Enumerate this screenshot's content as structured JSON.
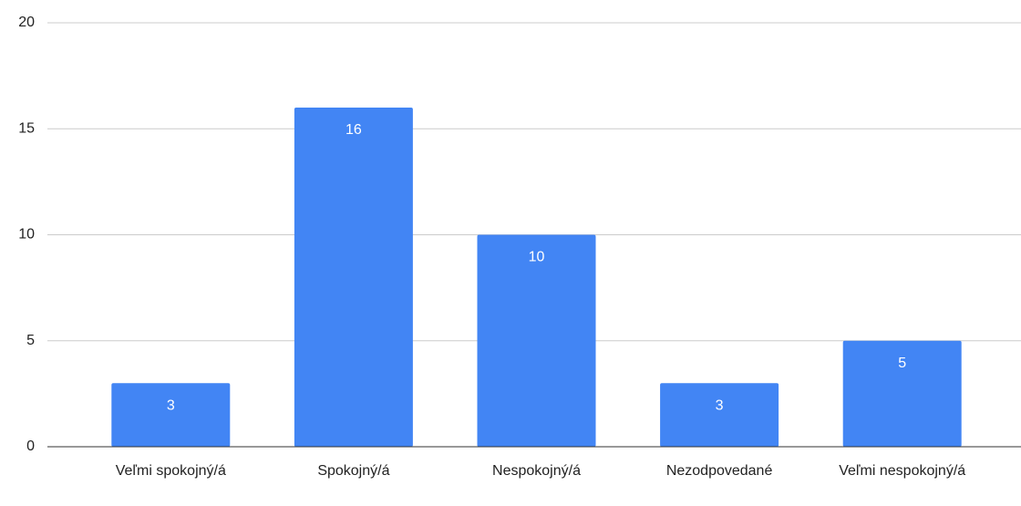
{
  "chart_data": {
    "type": "bar",
    "categories": [
      "Veľmi spokojný/á",
      "Spokojný/á",
      "Nespokojný/á",
      "Nezodpovedané",
      "Veľmi nespokojný/á"
    ],
    "values": [
      3,
      16,
      10,
      3,
      5
    ],
    "color": "#4285f4",
    "ylim": [
      0,
      20
    ],
    "yticks": [
      0,
      5,
      10,
      15,
      20
    ],
    "grid": true
  }
}
